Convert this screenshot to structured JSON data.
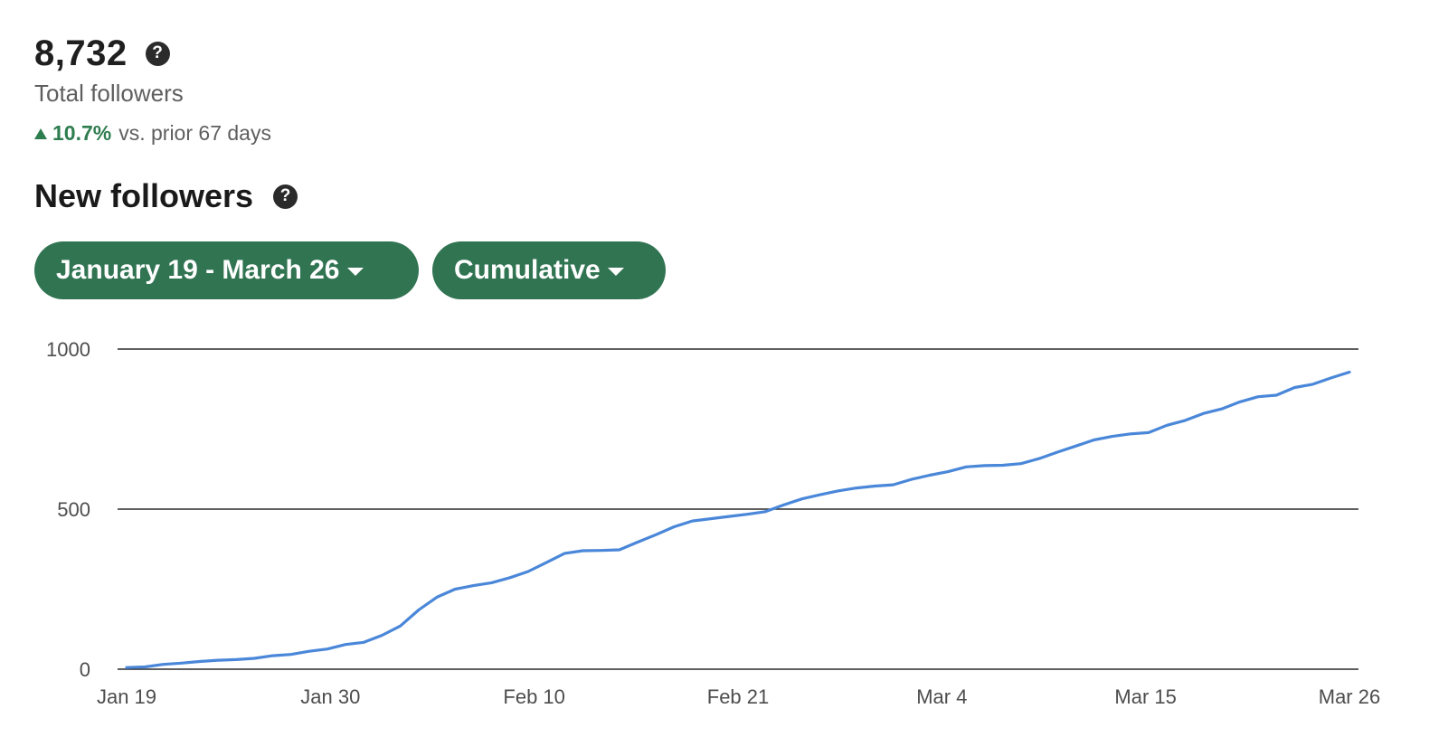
{
  "summary": {
    "total_value": "8,732",
    "total_label": "Total followers",
    "change_pct": "10.7%",
    "change_text": "vs. prior 67 days",
    "help_glyph": "?"
  },
  "section": {
    "title": "New followers"
  },
  "controls": {
    "date_range": "January 19 - March 26",
    "mode": "Cumulative"
  },
  "icons": {
    "help": "help-circle-icon",
    "trend": "triangle-up-icon",
    "dropdown": "caret-down-icon"
  },
  "colors": {
    "accent": "#317452",
    "positive": "#2e7d4f",
    "line": "#4a87d9"
  },
  "chart_data": {
    "type": "line",
    "x_ticks": [
      "Jan 19",
      "Jan 30",
      "Feb 10",
      "Feb 21",
      "Mar 4",
      "Mar 15",
      "Mar 26"
    ],
    "y_ticks": [
      0,
      500,
      1000
    ],
    "ylim": [
      0,
      1000
    ],
    "grid": true,
    "series": [
      {
        "values": [
          5,
          7,
          15,
          19,
          24,
          28,
          30,
          34,
          42,
          46,
          56,
          63,
          77,
          84,
          106,
          135,
          185,
          225,
          250,
          261,
          270,
          286,
          305,
          333,
          362,
          370,
          371,
          373,
          397,
          420,
          445,
          463,
          470,
          477,
          484,
          492,
          513,
          532,
          545,
          557,
          566,
          572,
          576,
          593,
          606,
          617,
          632,
          636,
          637,
          642,
          658,
          678,
          697,
          716,
          727,
          735,
          739,
          762,
          777,
          799,
          813,
          835,
          851,
          856,
          880,
          890,
          910,
          928
        ]
      }
    ]
  }
}
